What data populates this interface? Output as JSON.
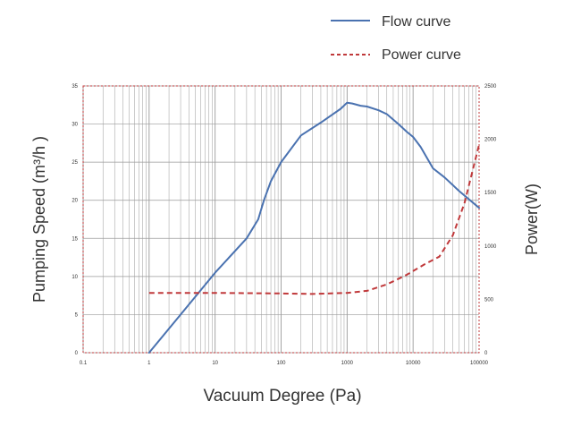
{
  "chart_data": {
    "type": "line",
    "title": "",
    "xlabel": "Vacuum Degree (Pa)",
    "ylabel_left": "Pumping Speed (m³/h )",
    "ylabel_right": "Power(W)",
    "x_scale": "log",
    "xlim": [
      0.1,
      100000
    ],
    "ylim_left": [
      0,
      35
    ],
    "ylim_right": [
      0,
      2500
    ],
    "x_ticks": [
      "0.1",
      "1",
      "10",
      "100",
      "1000",
      "10000",
      "100000"
    ],
    "y_left_ticks": [
      "0",
      "5",
      "10",
      "15",
      "20",
      "25",
      "30",
      "35"
    ],
    "y_right_ticks": [
      "0",
      "500",
      "1000",
      "1500",
      "2000",
      "2500"
    ],
    "grid": true,
    "legend_position": "top-right",
    "colors": {
      "flow": "#4a72b0",
      "power": "#c0393b",
      "grid": "#9a9a9a",
      "frame": "#c0393b"
    },
    "series": [
      {
        "name": "Flow curve",
        "axis": "left",
        "style": "solid",
        "x": [
          1,
          3,
          10,
          30,
          45,
          55,
          70,
          100,
          200,
          400,
          800,
          1000,
          1200,
          1600,
          2000,
          3000,
          4000,
          6000,
          8000,
          10000,
          13000,
          20000,
          30000,
          50000,
          100000
        ],
        "y": [
          0,
          5,
          10.5,
          15,
          17.5,
          20,
          22.5,
          25,
          28.5,
          30.2,
          32,
          32.8,
          32.7,
          32.4,
          32.3,
          31.8,
          31.3,
          30,
          29,
          28.3,
          27,
          24.2,
          23,
          21.2,
          19
        ]
      },
      {
        "name": "Power curve",
        "axis": "right",
        "style": "dashed",
        "x": [
          1,
          10,
          100,
          300,
          1000,
          2000,
          4000,
          8000,
          15000,
          25000,
          40000,
          60000,
          100000
        ],
        "y": [
          560,
          560,
          555,
          550,
          560,
          580,
          640,
          730,
          830,
          900,
          1100,
          1400,
          1950
        ]
      }
    ]
  }
}
